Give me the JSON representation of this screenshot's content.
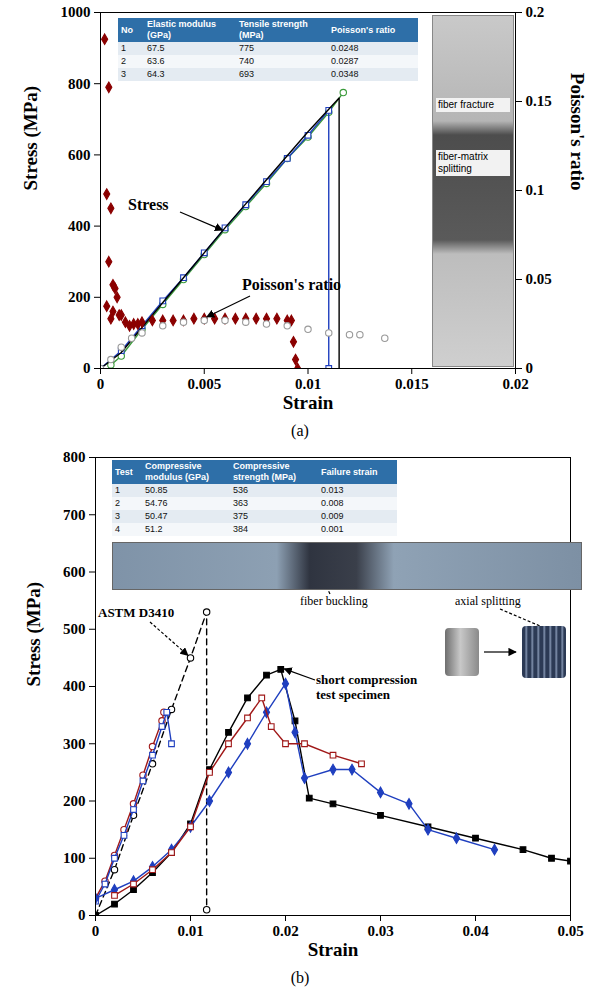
{
  "chart_data": [
    {
      "type": "line",
      "caption": "(a)",
      "xlabel": "Strain",
      "ylabel": "Stress (MPa)",
      "y2label": "Poisson's ratio",
      "xlim": [
        0,
        0.02
      ],
      "xticks": [
        0,
        0.005,
        0.01,
        0.015,
        0.02
      ],
      "ylim": [
        0,
        1000
      ],
      "yticks": [
        0,
        200,
        400,
        600,
        800,
        1000
      ],
      "y2lim": [
        0,
        0.2
      ],
      "y2ticks": [
        0,
        0.05,
        0.1,
        0.15,
        0.2
      ],
      "series": [
        {
          "color": "#3a9a3a",
          "marker": "circle",
          "line_style": "solid",
          "x": [
            0.0005,
            0.001,
            0.002,
            0.003,
            0.004,
            0.005,
            0.006,
            0.007,
            0.008,
            0.009,
            0.01,
            0.011,
            0.0117
          ],
          "values": [
            10,
            35,
            110,
            180,
            250,
            320,
            390,
            455,
            520,
            590,
            650,
            720,
            775
          ]
        },
        {
          "color": "#1f3fbf",
          "marker": "square",
          "line_style": "solid",
          "x": [
            0,
            0.001,
            0.002,
            0.003,
            0.004,
            0.005,
            0.006,
            0.007,
            0.008,
            0.009,
            0.01,
            0.011,
            0.011
          ],
          "values": [
            0,
            50,
            120,
            190,
            255,
            325,
            395,
            460,
            525,
            590,
            655,
            725,
            0
          ]
        },
        {
          "color": "#000000",
          "marker": "none",
          "line_style": "solid",
          "x": [
            0,
            0.001,
            0.002,
            0.004,
            0.006,
            0.008,
            0.01,
            0.0115,
            0.0115
          ],
          "values": [
            0,
            45,
            115,
            255,
            395,
            530,
            665,
            760,
            0
          ]
        },
        {
          "type": "scatter",
          "axis": "y2",
          "color": "#8b0000",
          "marker": "filled_diamond",
          "line_style": "none",
          "x": [
            0.0002,
            0.0003,
            0.0003,
            0.0004,
            0.0004,
            0.0005,
            0.0005,
            0.0006,
            0.0006,
            0.0007,
            0.0008,
            0.0009,
            0.001,
            0.0012,
            0.0014,
            0.0016,
            0.0018,
            0.002,
            0.0025,
            0.003,
            0.0035,
            0.004,
            0.0045,
            0.005,
            0.0055,
            0.006,
            0.0065,
            0.007,
            0.0075,
            0.008,
            0.0085,
            0.009,
            0.0092,
            0.0093,
            0.0094,
            0.0095
          ],
          "values": [
            0.185,
            0.098,
            0.035,
            0.158,
            0.06,
            0.09,
            0.028,
            0.047,
            0.032,
            0.045,
            0.04,
            0.03,
            0.03,
            0.026,
            0.024,
            0.025,
            0.025,
            0.026,
            0.027,
            0.027,
            0.027,
            0.027,
            0.028,
            0.028,
            0.028,
            0.028,
            0.028,
            0.028,
            0.028,
            0.028,
            0.028,
            0.027,
            0.027,
            0.015,
            0.005,
            0
          ]
        },
        {
          "type": "scatter",
          "axis": "y2",
          "color": "#999999",
          "marker": "circle",
          "line_style": "none",
          "x": [
            0,
            0.0005,
            0.001,
            0.0015,
            0.002,
            0.003,
            0.004,
            0.005,
            0.006,
            0.007,
            0.008,
            0.009,
            0.01,
            0.011,
            0.012,
            0.0125,
            0.0137
          ],
          "values": [
            0,
            0.005,
            0.012,
            0.017,
            0.02,
            0.024,
            0.026,
            0.027,
            0.027,
            0.026,
            0.025,
            0.024,
            0.022,
            0.02,
            0.019,
            0.019,
            0.017
          ]
        }
      ],
      "annotations": [
        "Stress",
        "Poisson's ratio",
        "fiber fracture",
        "fiber-matrix splitting"
      ],
      "table": {
        "columns": [
          "No",
          "Elastic modulus (GPa)",
          "Tensile strength (MPa)",
          "Poisson's ratio"
        ],
        "rows": [
          [
            "1",
            "67.5",
            "775",
            "0.0248"
          ],
          [
            "2",
            "63.6",
            "740",
            "0.0287"
          ],
          [
            "3",
            "64.3",
            "693",
            "0.0348"
          ]
        ]
      }
    },
    {
      "type": "line",
      "caption": "(b)",
      "xlabel": "Strain",
      "ylabel": "Stress (MPa)",
      "xlim": [
        0,
        0.05
      ],
      "xticks": [
        0,
        0.01,
        0.02,
        0.03,
        0.04,
        0.05
      ],
      "ylim": [
        0,
        800
      ],
      "yticks": [
        0,
        100,
        200,
        300,
        400,
        500,
        600,
        700,
        800
      ],
      "series": [
        {
          "color": "#000000",
          "marker": "circle",
          "line_style": "dashed",
          "x": [
            0,
            0.002,
            0.004,
            0.006,
            0.008,
            0.01,
            0.0117,
            0.0117
          ],
          "values": [
            0,
            80,
            175,
            265,
            360,
            450,
            530,
            10
          ]
        },
        {
          "color": "#a01818",
          "marker": "circle",
          "line_style": "solid",
          "x": [
            0,
            0.001,
            0.002,
            0.003,
            0.004,
            0.005,
            0.006,
            0.007,
            0.0072
          ],
          "values": [
            30,
            60,
            105,
            150,
            195,
            245,
            295,
            340,
            355
          ]
        },
        {
          "color": "#1f3fbf",
          "marker": "square",
          "line_style": "solid",
          "x": [
            0,
            0.001,
            0.002,
            0.003,
            0.004,
            0.005,
            0.006,
            0.007,
            0.0075,
            0.008
          ],
          "values": [
            25,
            55,
            100,
            140,
            185,
            235,
            280,
            330,
            355,
            300
          ]
        },
        {
          "color": "#000000",
          "marker": "filled_square",
          "line_style": "solid",
          "x": [
            0,
            0.002,
            0.004,
            0.006,
            0.008,
            0.01,
            0.012,
            0.014,
            0.016,
            0.018,
            0.0195,
            0.021,
            0.0225,
            0.025,
            0.03,
            0.035,
            0.04,
            0.045,
            0.048,
            0.05
          ],
          "values": [
            0,
            20,
            45,
            75,
            110,
            160,
            255,
            320,
            380,
            420,
            430,
            340,
            205,
            195,
            175,
            155,
            135,
            115,
            100,
            95
          ]
        },
        {
          "color": "#1f3fbf",
          "marker": "filled_diamond",
          "line_style": "solid",
          "x": [
            0,
            0.002,
            0.004,
            0.006,
            0.008,
            0.01,
            0.012,
            0.014,
            0.016,
            0.018,
            0.02,
            0.021,
            0.022,
            0.025,
            0.027,
            0.03,
            0.033,
            0.035,
            0.038,
            0.042
          ],
          "values": [
            30,
            45,
            60,
            85,
            115,
            155,
            200,
            250,
            300,
            355,
            405,
            320,
            240,
            255,
            255,
            215,
            195,
            150,
            135,
            115
          ]
        },
        {
          "color": "#a01818",
          "marker": "square",
          "line_style": "solid",
          "x": [
            0.002,
            0.004,
            0.006,
            0.008,
            0.01,
            0.012,
            0.014,
            0.016,
            0.0175,
            0.0185,
            0.02,
            0.022,
            0.025,
            0.028
          ],
          "values": [
            35,
            55,
            80,
            110,
            155,
            250,
            300,
            345,
            380,
            330,
            300,
            300,
            280,
            265
          ]
        }
      ],
      "annotations": [
        "ASTM D3410",
        "short compression test specimen",
        "fiber buckling",
        "axial splitting"
      ],
      "table": {
        "columns": [
          "Test",
          "Compressive modulus (GPa)",
          "Compressive strength (MPa)",
          "Failure strain"
        ],
        "rows": [
          [
            "1",
            "50.85",
            "536",
            "0.013"
          ],
          [
            "2",
            "54.76",
            "363",
            "0.008"
          ],
          [
            "3",
            "50.47",
            "375",
            "0.009"
          ],
          [
            "4",
            "51.2",
            "384",
            "0.001"
          ]
        ]
      }
    }
  ]
}
